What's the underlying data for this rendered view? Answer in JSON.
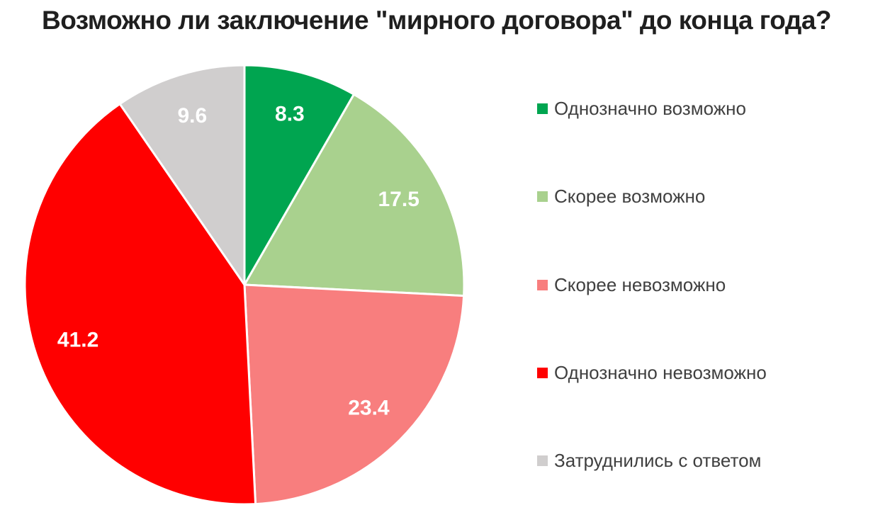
{
  "title": "Возможно ли заключение \"мирного договора\" до конца года?",
  "chart_data": {
    "type": "pie",
    "title": "Возможно ли заключение \"мирного договора\" до конца года?",
    "start_angle_deg": 0,
    "direction": "clockwise",
    "legend_position": "right",
    "background": "#FFFFFF",
    "value_label_color": "#FFFFFF",
    "slice_border_color": "#FFFFFF",
    "slices": [
      {
        "label": "Однозначно возможно",
        "value": 8.3,
        "color": "#00A550"
      },
      {
        "label": "Скорее возможно",
        "value": 17.5,
        "color": "#A9D18E"
      },
      {
        "label": "Скорее невозможно",
        "value": 23.4,
        "color": "#F87E7E"
      },
      {
        "label": "Однозначно невозможно",
        "value": 41.2,
        "color": "#FF0000"
      },
      {
        "label": "Затруднились с ответом",
        "value": 9.6,
        "color": "#D0CECE"
      }
    ]
  }
}
